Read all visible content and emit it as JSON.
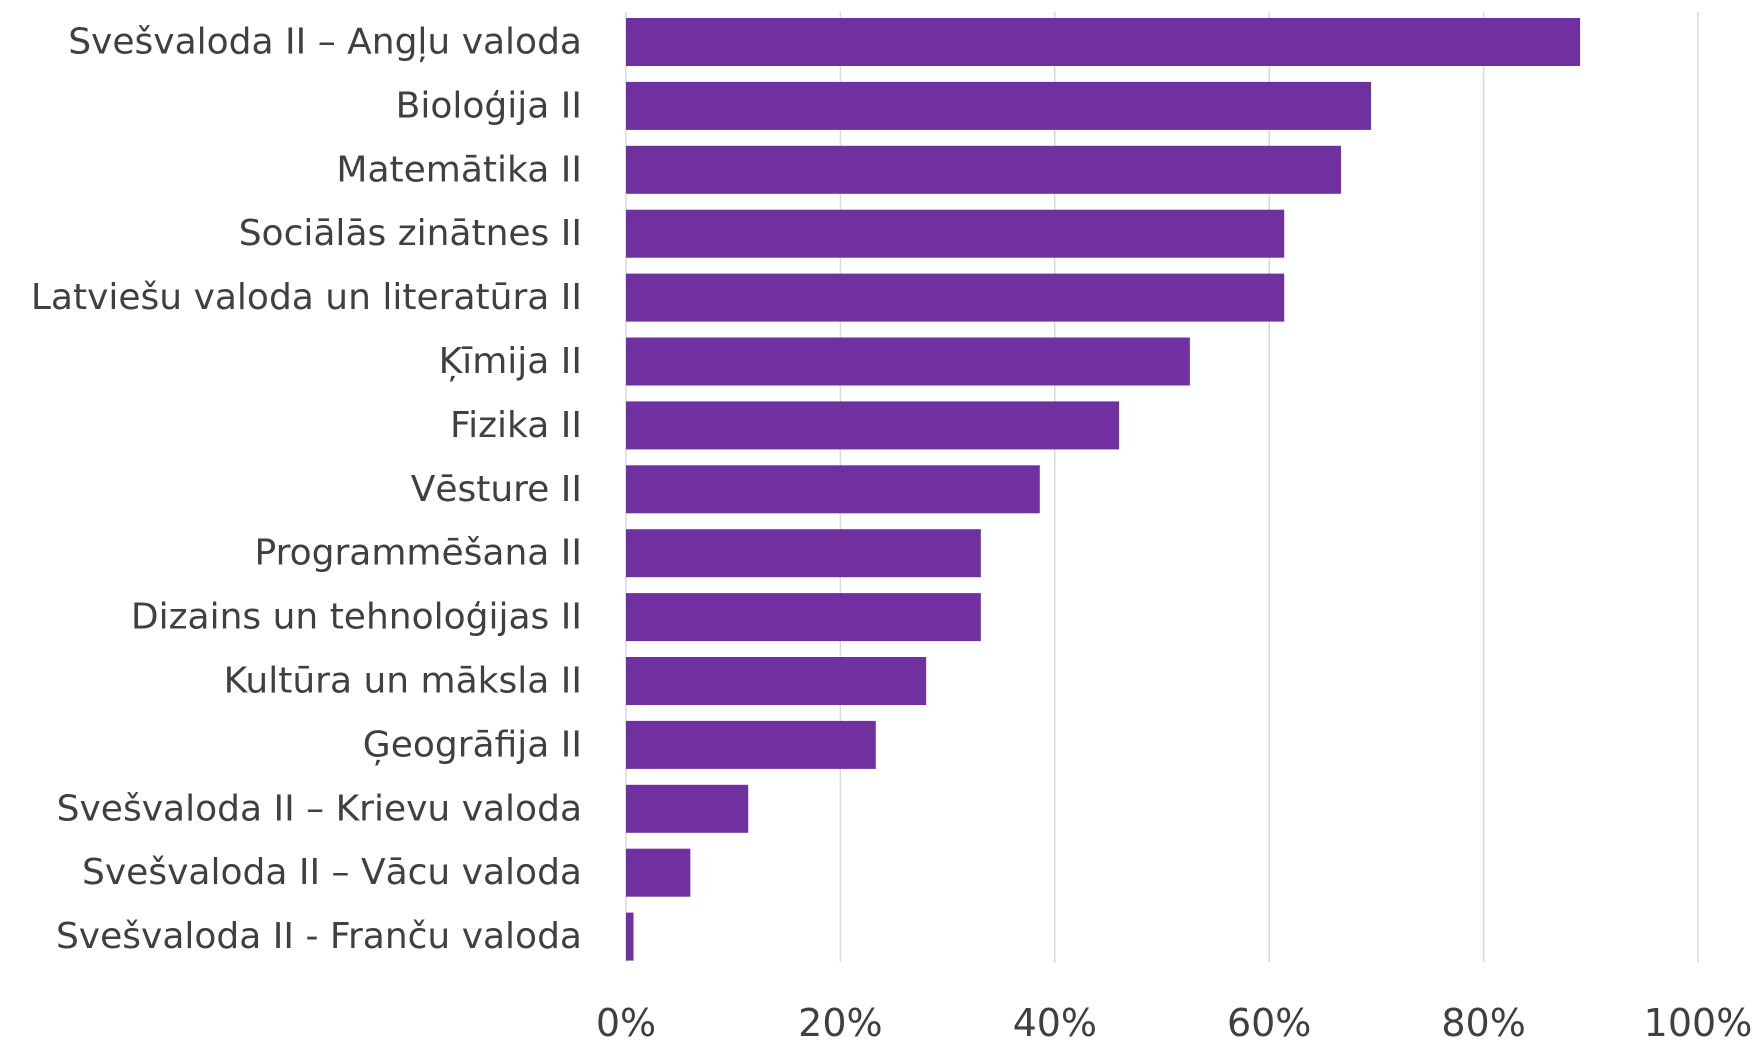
{
  "chart_data": {
    "type": "bar",
    "orientation": "horizontal",
    "categories": [
      "Svešvaloda II – Angļu valoda",
      "Bioloģija II",
      "Matemātika  II",
      "Sociālās zinātnes II",
      "Latviešu valoda un literatūra II",
      "Ķīmija II",
      "Fizika II",
      "Vēsture II",
      "Programmēšana II",
      "Dizains un tehnoloģijas II",
      "Kultūra un māksla II",
      "Ģeogrāfija II",
      "Svešvaloda II – Krievu valoda",
      "Svešvaloda II – Vācu valoda",
      "Svešvaloda II - Franču valoda"
    ],
    "values": [
      89,
      69.5,
      66.7,
      61.4,
      61.4,
      52.6,
      46,
      38.6,
      33.1,
      33.1,
      28,
      23.3,
      11.4,
      6,
      0.7
    ],
    "value_unit": "%",
    "xlim": [
      0,
      100
    ],
    "xticks": [
      "0%",
      "20%",
      "40%",
      "60%",
      "80%",
      "100%"
    ],
    "xtick_values": [
      0,
      20,
      40,
      60,
      80,
      100
    ],
    "bar_color": "#7030a0",
    "grid": true,
    "legend": "none"
  }
}
